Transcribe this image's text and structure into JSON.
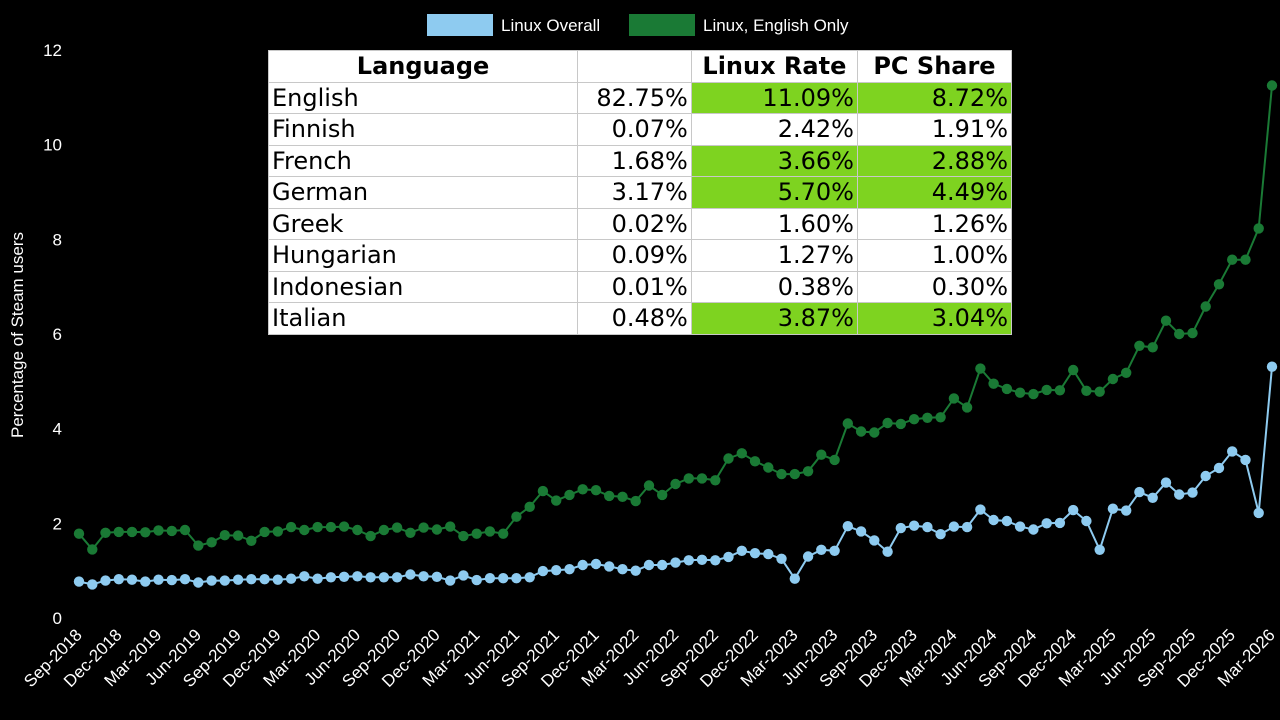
{
  "chart_data": {
    "type": "line",
    "ylabel": "Percentage of Steam users",
    "xlabel": "",
    "ylim": [
      0,
      12
    ],
    "yticks": [
      0,
      2,
      4,
      6,
      8,
      10,
      12
    ],
    "grid": false,
    "legend_position": "top-center",
    "x_tick_labels": [
      "Sep-2018",
      "Dec-2018",
      "Mar-2019",
      "Jun-2019",
      "Sep-2019",
      "Dec-2019",
      "Mar-2020",
      "Jun-2020",
      "Sep-2020",
      "Dec-2020",
      "Mar-2021",
      "Jun-2021",
      "Sep-2021",
      "Dec-2021",
      "Mar-2022",
      "Jun-2022",
      "Sep-2022",
      "Dec-2022",
      "Mar-2023",
      "Jun-2023",
      "Sep-2023",
      "Dec-2023",
      "Mar-2024",
      "Jun-2024",
      "Sep-2024",
      "Dec-2024",
      "Mar-2025",
      "Jun-2025",
      "Sep-2025",
      "Dec-2025",
      "Mar-2026"
    ],
    "months": [
      "Sep-2018",
      "Oct-2018",
      "Nov-2018",
      "Dec-2018",
      "Jan-2019",
      "Feb-2019",
      "Mar-2019",
      "Apr-2019",
      "May-2019",
      "Jun-2019",
      "Jul-2019",
      "Aug-2019",
      "Sep-2019",
      "Oct-2019",
      "Nov-2019",
      "Dec-2019",
      "Jan-2020",
      "Feb-2020",
      "Mar-2020",
      "Apr-2020",
      "May-2020",
      "Jun-2020",
      "Jul-2020",
      "Aug-2020",
      "Sep-2020",
      "Oct-2020",
      "Nov-2020",
      "Dec-2020",
      "Jan-2021",
      "Feb-2021",
      "Mar-2021",
      "Apr-2021",
      "May-2021",
      "Jun-2021",
      "Jul-2021",
      "Aug-2021",
      "Sep-2021",
      "Oct-2021",
      "Nov-2021",
      "Dec-2021",
      "Jan-2022",
      "Feb-2022",
      "Mar-2022",
      "Apr-2022",
      "May-2022",
      "Jun-2022",
      "Jul-2022",
      "Aug-2022",
      "Sep-2022",
      "Oct-2022",
      "Nov-2022",
      "Dec-2022",
      "Jan-2023",
      "Feb-2023",
      "Mar-2023",
      "Apr-2023",
      "May-2023",
      "Jun-2023",
      "Jul-2023",
      "Aug-2023",
      "Sep-2023",
      "Oct-2023",
      "Nov-2023",
      "Dec-2023",
      "Jan-2024",
      "Feb-2024",
      "Mar-2024",
      "Apr-2024",
      "May-2024",
      "Jun-2024",
      "Jul-2024",
      "Aug-2024",
      "Sep-2024",
      "Oct-2024",
      "Nov-2024",
      "Dec-2024",
      "Jan-2025",
      "Feb-2025",
      "Mar-2025",
      "Apr-2025",
      "May-2025",
      "Jun-2025",
      "Jul-2025",
      "Aug-2025",
      "Sep-2025",
      "Oct-2025",
      "Nov-2025",
      "Dec-2025",
      "Jan-2026",
      "Feb-2026",
      "Mar-2026"
    ],
    "series": [
      {
        "name": "Linux, English Only",
        "color": "#1a7a35",
        "values": [
          1.78,
          1.45,
          1.8,
          1.82,
          1.82,
          1.81,
          1.85,
          1.84,
          1.86,
          1.53,
          1.6,
          1.75,
          1.74,
          1.63,
          1.82,
          1.83,
          1.92,
          1.86,
          1.92,
          1.92,
          1.93,
          1.86,
          1.73,
          1.86,
          1.91,
          1.8,
          1.91,
          1.87,
          1.93,
          1.73,
          1.78,
          1.83,
          1.78,
          2.14,
          2.35,
          2.68,
          2.48,
          2.6,
          2.72,
          2.7,
          2.58,
          2.56,
          2.47,
          2.8,
          2.6,
          2.83,
          2.95,
          2.95,
          2.91,
          3.37,
          3.48,
          3.31,
          3.18,
          3.04,
          3.04,
          3.1,
          3.45,
          3.34,
          4.11,
          3.94,
          3.92,
          4.12,
          4.1,
          4.2,
          4.23,
          4.24,
          4.64,
          4.45,
          5.27,
          4.95,
          4.84,
          4.76,
          4.73,
          4.82,
          4.81,
          5.24,
          4.8,
          4.78,
          5.05,
          5.18,
          5.75,
          5.72,
          6.28,
          6.0,
          6.02,
          6.58,
          7.05,
          7.57,
          7.57,
          8.23,
          11.25
        ]
      },
      {
        "name": "Linux Overall",
        "color": "#8ecbf0",
        "values": [
          0.77,
          0.71,
          0.79,
          0.82,
          0.81,
          0.77,
          0.81,
          0.8,
          0.82,
          0.75,
          0.79,
          0.79,
          0.81,
          0.82,
          0.82,
          0.81,
          0.83,
          0.88,
          0.83,
          0.86,
          0.87,
          0.88,
          0.86,
          0.86,
          0.86,
          0.92,
          0.88,
          0.87,
          0.79,
          0.9,
          0.8,
          0.84,
          0.84,
          0.84,
          0.86,
          0.99,
          1.01,
          1.03,
          1.12,
          1.14,
          1.09,
          1.03,
          1.0,
          1.12,
          1.12,
          1.17,
          1.22,
          1.23,
          1.22,
          1.29,
          1.42,
          1.37,
          1.35,
          1.25,
          0.83,
          1.3,
          1.44,
          1.42,
          1.94,
          1.83,
          1.64,
          1.4,
          1.9,
          1.95,
          1.92,
          1.77,
          1.93,
          1.92,
          2.29,
          2.07,
          2.05,
          1.93,
          1.87,
          2.0,
          2.01,
          2.28,
          2.05,
          1.44,
          2.31,
          2.27,
          2.66,
          2.54,
          2.86,
          2.61,
          2.65,
          3.0,
          3.17,
          3.52,
          3.34,
          2.22,
          5.31
        ]
      }
    ],
    "legend": [
      {
        "name": "Linux Overall",
        "color": "#8ecbf0"
      },
      {
        "name": "Linux, English Only",
        "color": "#1a7a35"
      }
    ]
  },
  "table": {
    "headers": [
      "Language",
      "",
      "Linux Rate",
      "PC  Share"
    ],
    "highlight_color": "#7ed320",
    "rows": [
      {
        "language": "English",
        "share": "82.75%",
        "linux_rate": "11.09%",
        "pc_share": "8.72%",
        "highlight": true
      },
      {
        "language": "Finnish",
        "share": "0.07%",
        "linux_rate": "2.42%",
        "pc_share": "1.91%",
        "highlight": false
      },
      {
        "language": "French",
        "share": "1.68%",
        "linux_rate": "3.66%",
        "pc_share": "2.88%",
        "highlight": true
      },
      {
        "language": "German",
        "share": "3.17%",
        "linux_rate": "5.70%",
        "pc_share": "4.49%",
        "highlight": true
      },
      {
        "language": "Greek",
        "share": "0.02%",
        "linux_rate": "1.60%",
        "pc_share": "1.26%",
        "highlight": false
      },
      {
        "language": "Hungarian",
        "share": "0.09%",
        "linux_rate": "1.27%",
        "pc_share": "1.00%",
        "highlight": false
      },
      {
        "language": "Indonesian",
        "share": "0.01%",
        "linux_rate": "0.38%",
        "pc_share": "0.30%",
        "highlight": false
      },
      {
        "language": "Italian",
        "share": "0.48%",
        "linux_rate": "3.87%",
        "pc_share": "3.04%",
        "highlight": true
      }
    ]
  }
}
